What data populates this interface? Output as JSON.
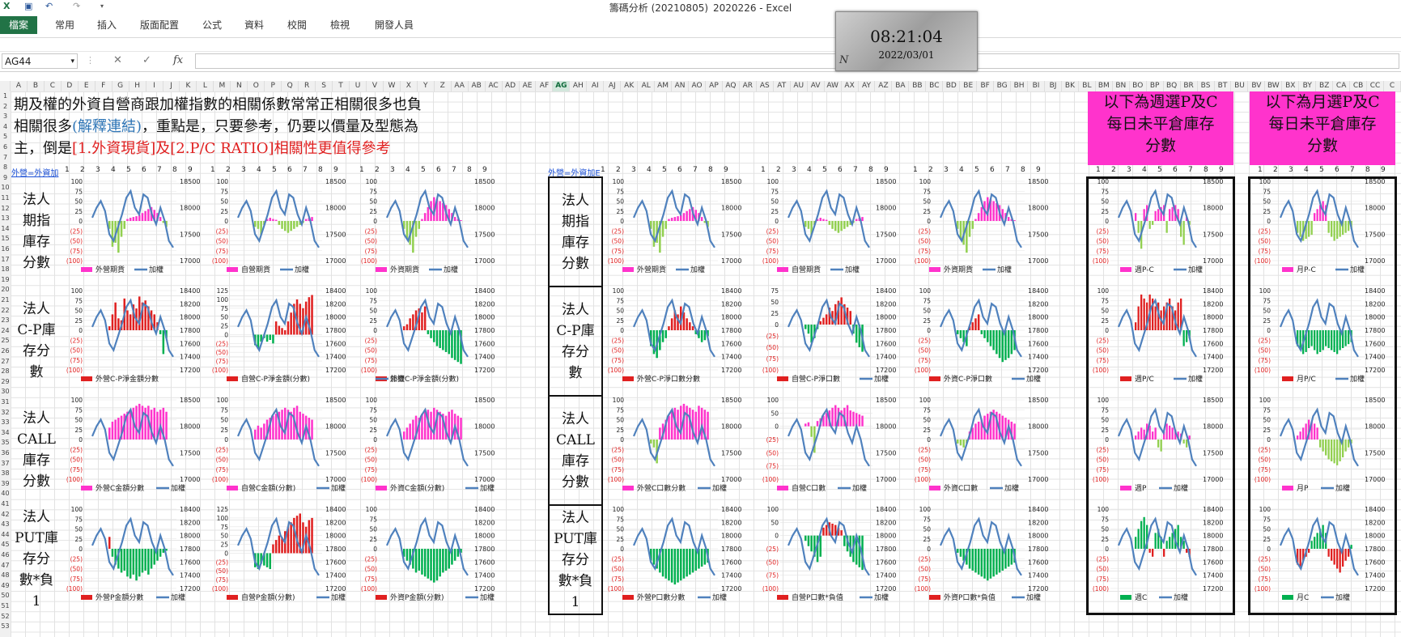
{
  "window": {
    "title": "籌碼分析 (20210805)_2020226 - Excel",
    "qa_icons": [
      "excel-icon",
      "save-icon",
      "undo-icon",
      "redo-icon",
      "customize-icon"
    ]
  },
  "ribbon": {
    "file": "檔案",
    "tabs": [
      "常用",
      "插入",
      "版面配置",
      "公式",
      "資料",
      "校閱",
      "檢視",
      "開發人員"
    ]
  },
  "clock": {
    "time": "08:21:04",
    "date": "2022/03/01",
    "mark": "N"
  },
  "formula_bar": {
    "name_box": "AG44",
    "cancel": "✕",
    "enter": "✓",
    "fx": "fx",
    "formula": ""
  },
  "columns": [
    "A",
    "B",
    "C",
    "D",
    "E",
    "F",
    "G",
    "H",
    "I",
    "J",
    "K",
    "L",
    "M",
    "N",
    "O",
    "P",
    "Q",
    "R",
    "S",
    "T",
    "U",
    "V",
    "W",
    "X",
    "Y",
    "Z",
    "AA",
    "AB",
    "AC",
    "AD",
    "AE",
    "AF",
    "AG",
    "AH",
    "AI",
    "AJ",
    "AK",
    "AL",
    "AM",
    "AN",
    "AO",
    "AP",
    "AQ",
    "AR",
    "AS",
    "AT",
    "AU",
    "AV",
    "AW",
    "AX",
    "AY",
    "AZ",
    "BA",
    "BB",
    "BC",
    "BD",
    "BE",
    "BF",
    "BG",
    "BH",
    "BI",
    "BJ",
    "BK",
    "BL",
    "BM",
    "BN",
    "BO",
    "BP",
    "BQ",
    "BR",
    "BS",
    "BT",
    "BU",
    "BV",
    "BW",
    "BX",
    "BY",
    "BZ",
    "CA",
    "CB",
    "CC",
    "C"
  ],
  "selected_column": "AG",
  "number_row": [
    "1",
    "2",
    "3",
    "4",
    "5",
    "6",
    "7",
    "8",
    "9"
  ],
  "note": {
    "line1": "期及權的外資自營商跟加權指數的相關係數常常正相關很多也負",
    "line2a": "相關很多",
    "line2b": "(解釋連結)",
    "line2c": "，重點是，只要參考，仍要以價量及型態為",
    "line3a": "主，倒是",
    "line3b": "[1.外資現貨]及[2.P/C RATIO]",
    "line3c": "相關性更值得參考"
  },
  "links": {
    "a": "外營=外資加",
    "b": "外營=外資加E"
  },
  "pink_boxes": [
    {
      "line1": "以下為週選P及C",
      "line2": "每日未平倉庫存",
      "line3": "分數"
    },
    {
      "line1": "以下為月選P及C",
      "line2": "每日未平倉庫存",
      "line3": "分數"
    }
  ],
  "row_labels": [
    [
      "法人",
      "期指",
      "庫存",
      "分數"
    ],
    [
      "法人",
      "C-P庫",
      "存分",
      "數"
    ],
    [
      "法人",
      "CALL",
      "庫存",
      "分數"
    ],
    [
      "法人",
      "PUT庫",
      "存分",
      "數*負",
      "1"
    ]
  ],
  "left_axis_sets": {
    "a": [
      "100",
      "75",
      "50",
      "25",
      "0",
      "(25)",
      "(50)",
      "(75)",
      "(100)"
    ],
    "b": [
      "125",
      "100",
      "75",
      "50",
      "25",
      "0",
      "(25)",
      "(50)",
      "(75)",
      "(100)"
    ],
    "c": [
      "100",
      "50",
      "0",
      "(25)",
      "(50)",
      "(75)",
      "(100)"
    ],
    "d": [
      "75",
      "50",
      "25",
      "0",
      "(25)",
      "(50)",
      "(75)",
      "(100)"
    ]
  },
  "right_axis_sets": {
    "r1": [
      "18500",
      "18000",
      "17500",
      "17000"
    ],
    "r2": [
      "18400",
      "18200",
      "18000",
      "17800",
      "17600",
      "17400",
      "17200"
    ]
  },
  "colors": {
    "pink": "#ff33cc",
    "green": "#92d050",
    "red": "#e02020",
    "dkgreen": "#00b050",
    "blue": "#4f81bd"
  },
  "charts": [
    {
      "legend": [
        "外營期貨",
        "加權"
      ],
      "pos": "#ff33cc",
      "neg": "#92d050",
      "line": "#4f81bd",
      "laxis": "a",
      "raxis": "r1",
      "values": [
        -20,
        -65,
        -55,
        -80,
        -40,
        -20,
        5,
        8,
        10,
        12,
        15,
        20,
        25,
        30,
        35,
        28,
        20,
        10,
        -5,
        -15
      ]
    },
    {
      "legend": [
        "自營期貨",
        "加權"
      ],
      "pos": "#ff33cc",
      "neg": "#92d050",
      "line": "#4f81bd",
      "laxis": "a",
      "raxis": "r1",
      "values": [
        -15,
        -20,
        -35,
        -10,
        5,
        8,
        5,
        3,
        -10,
        -20,
        -25,
        -30,
        -25,
        -20,
        -15,
        -10,
        -5,
        5,
        8,
        10
      ]
    },
    {
      "legend": [
        "外資期貨",
        "加權"
      ],
      "pos": "#ff33cc",
      "neg": "#92d050",
      "line": "#4f81bd",
      "laxis": "a",
      "raxis": "r1",
      "values": [
        -20,
        -45,
        -60,
        -80,
        -40,
        -20,
        5,
        20,
        35,
        50,
        60,
        55,
        50,
        45,
        40,
        30,
        20,
        10,
        5,
        2
      ]
    },
    {
      "legend": [
        "外營C-P淨金額分數"
      ],
      "pos": "#e02020",
      "neg": "#00b050",
      "line": "#4f81bd",
      "laxis": "a",
      "raxis": "r2",
      "values": [
        10,
        40,
        70,
        30,
        25,
        80,
        50,
        40,
        65,
        55,
        85,
        70,
        75,
        60,
        50,
        40,
        20,
        -10,
        -60,
        -20
      ]
    },
    {
      "legend": [
        "自營C-P淨金額(分數)"
      ],
      "pos": "#e02020",
      "neg": "#00b050",
      "line": "#4f81bd",
      "laxis": "b",
      "raxis": "r2",
      "values": [
        -30,
        -40,
        -20,
        -10,
        -20,
        -15,
        -25,
        30,
        20,
        15,
        10,
        30,
        50,
        70,
        80,
        70,
        60,
        75,
        85,
        90
      ]
    },
    {
      "legend": [
        "外資C-P淨金額(分數)",
        "加權"
      ],
      "pos": "#e02020",
      "neg": "#00b050",
      "line": "#4f81bd",
      "laxis": "a",
      "raxis": "r2",
      "values": [
        10,
        15,
        30,
        40,
        50,
        55,
        45,
        60,
        -10,
        -20,
        -30,
        -40,
        -45,
        -50,
        -55,
        -60,
        -70,
        -75,
        -80,
        -85
      ]
    },
    {
      "legend": [
        "外營C金額分數",
        "加權"
      ],
      "pos": "#ff33cc",
      "neg": "#92d050",
      "line": "#4f81bd",
      "laxis": "a",
      "raxis": "r1",
      "values": [
        30,
        45,
        50,
        55,
        60,
        65,
        70,
        75,
        80,
        85,
        90,
        85,
        80,
        85,
        75,
        80,
        70,
        75,
        80,
        70
      ]
    },
    {
      "legend": [
        "自營C金額(分數)",
        "加權"
      ],
      "pos": "#ff33cc",
      "neg": "#92d050",
      "line": "#4f81bd",
      "laxis": "a",
      "raxis": "r1",
      "values": [
        25,
        35,
        30,
        40,
        50,
        55,
        60,
        65,
        70,
        75,
        80,
        75,
        70,
        80,
        85,
        70,
        65,
        60,
        55,
        50
      ]
    },
    {
      "legend": [
        "外資C金額(分數)",
        "加權"
      ],
      "pos": "#ff33cc",
      "neg": "#92d050",
      "line": "#4f81bd",
      "laxis": "a",
      "raxis": "r1",
      "values": [
        20,
        30,
        40,
        50,
        60,
        55,
        65,
        70,
        75,
        70,
        80,
        75,
        70,
        65,
        60,
        70,
        75,
        65,
        60,
        55
      ]
    },
    {
      "legend": [
        "外營P金額分數",
        "加權"
      ],
      "pos": "#e02020",
      "neg": "#00b050",
      "line": "#4f81bd",
      "laxis": "a",
      "raxis": "r2",
      "values": [
        30,
        -20,
        -40,
        -50,
        -60,
        -55,
        -70,
        -75,
        -65,
        -80,
        -70,
        -60,
        -55,
        -65,
        -50,
        -40,
        -30,
        -20,
        -10,
        -5
      ]
    },
    {
      "legend": [
        "自營P金額(分數)",
        "加權"
      ],
      "pos": "#e02020",
      "neg": "#00b050",
      "line": "#4f81bd",
      "laxis": "b",
      "raxis": "r2",
      "values": [
        -40,
        -45,
        -30,
        -35,
        -40,
        -45,
        20,
        30,
        40,
        35,
        50,
        60,
        70,
        80,
        85,
        90,
        70,
        60,
        75,
        80
      ]
    },
    {
      "legend": [
        "外資P金額(分數)",
        "加權"
      ],
      "pos": "#e02020",
      "neg": "#00b050",
      "line": "#4f81bd",
      "laxis": "a",
      "raxis": "r2",
      "values": [
        -20,
        -30,
        -40,
        -50,
        -60,
        -55,
        -65,
        -70,
        -75,
        -80,
        -85,
        -80,
        -70,
        -60,
        -55,
        -50,
        -40,
        -30,
        -20,
        -10
      ]
    },
    {
      "legend": [
        "外營期貨",
        "加權"
      ],
      "pos": "#ff33cc",
      "neg": "#92d050",
      "line": "#4f81bd",
      "laxis": "a",
      "raxis": "r1",
      "values": [
        -20,
        -65,
        -55,
        -80,
        -40,
        -20,
        5,
        8,
        10,
        12,
        15,
        20,
        25,
        30,
        35,
        28,
        20,
        10,
        -5,
        -15
      ]
    },
    {
      "legend": [
        "自營期貨",
        "加權"
      ],
      "pos": "#ff33cc",
      "neg": "#92d050",
      "line": "#4f81bd",
      "laxis": "a",
      "raxis": "r1",
      "values": [
        -15,
        -20,
        -35,
        -10,
        5,
        8,
        5,
        3,
        -10,
        -20,
        -25,
        -30,
        -25,
        -20,
        -15,
        -10,
        -5,
        5,
        8,
        10
      ]
    },
    {
      "legend": [
        "外資期貨",
        "加權"
      ],
      "pos": "#ff33cc",
      "neg": "#92d050",
      "line": "#4f81bd",
      "laxis": "a",
      "raxis": "r1",
      "values": [
        -20,
        -45,
        -60,
        -80,
        -40,
        -20,
        5,
        20,
        35,
        50,
        60,
        55,
        50,
        45,
        40,
        30,
        20,
        10,
        5,
        2
      ]
    },
    {
      "legend": [
        "外營C-P淨口數分數"
      ],
      "pos": "#e02020",
      "neg": "#00b050",
      "line": "#4f81bd",
      "laxis": "a",
      "raxis": "r2",
      "values": [
        -40,
        -60,
        -70,
        -50,
        -30,
        -20,
        10,
        30,
        50,
        40,
        60,
        45,
        30,
        20,
        10,
        -10,
        -20,
        -30,
        -25,
        -15
      ]
    },
    {
      "legend": [
        "自營C-P淨口數",
        "加權"
      ],
      "pos": "#e02020",
      "neg": "#00b050",
      "line": "#4f81bd",
      "laxis": "d",
      "raxis": "r2",
      "values": [
        -10,
        -20,
        -40,
        -30,
        -10,
        10,
        20,
        30,
        50,
        40,
        60,
        70,
        80,
        60,
        50,
        40,
        -20,
        -40,
        -50,
        -60
      ]
    },
    {
      "legend": [
        "外資C-P淨口數",
        "加權"
      ],
      "pos": "#e02020",
      "neg": "#00b050",
      "line": "#4f81bd",
      "laxis": "a",
      "raxis": "r2",
      "values": [
        -10,
        -20,
        -30,
        -40,
        10,
        20,
        30,
        40,
        -10,
        -20,
        -30,
        -40,
        -50,
        -60,
        -70,
        -80,
        -75,
        -70,
        -60,
        -50
      ]
    },
    {
      "legend": [
        "外營C口數分數",
        "加權"
      ],
      "pos": "#ff33cc",
      "neg": "#92d050",
      "line": "#4f81bd",
      "laxis": "a",
      "raxis": "r1",
      "values": [
        -10,
        -20,
        -60,
        30,
        40,
        50,
        60,
        70,
        80,
        75,
        85,
        90,
        85,
        80,
        75,
        70,
        85,
        80,
        75,
        70
      ]
    },
    {
      "legend": [
        "自營C口數",
        "加權"
      ],
      "pos": "#ff33cc",
      "neg": "#92d050",
      "line": "#4f81bd",
      "laxis": "c",
      "raxis": "r1",
      "values": [
        10,
        15,
        -20,
        -50,
        20,
        30,
        40,
        50,
        60,
        70,
        80,
        70,
        60,
        70,
        80,
        60,
        55,
        50,
        45,
        40
      ]
    },
    {
      "legend": [
        "外資C口數",
        "加權"
      ],
      "pos": "#ff33cc",
      "neg": "#92d050",
      "line": "#4f81bd",
      "laxis": "a",
      "raxis": "r1",
      "values": [
        -10,
        -15,
        -20,
        -10,
        20,
        30,
        40,
        45,
        50,
        60,
        65,
        70,
        75,
        70,
        65,
        60,
        55,
        50,
        45,
        40
      ]
    },
    {
      "legend": [
        "外營P口數分數",
        "加權"
      ],
      "pos": "#e02020",
      "neg": "#00b050",
      "line": "#4f81bd",
      "laxis": "a",
      "raxis": "r2",
      "values": [
        -30,
        -40,
        -50,
        -60,
        -70,
        -75,
        -80,
        -85,
        -90,
        -85,
        -80,
        -75,
        -70,
        -65,
        -60,
        -55,
        -50,
        -45,
        -40,
        -35
      ]
    },
    {
      "legend": [
        "自營P口數*負值",
        "加權"
      ],
      "pos": "#e02020",
      "neg": "#00b050",
      "line": "#4f81bd",
      "laxis": "c",
      "raxis": "r2",
      "values": [
        -10,
        -20,
        -30,
        -40,
        -50,
        -40,
        30,
        40,
        50,
        45,
        40,
        30,
        20,
        -20,
        -30,
        -40,
        -50,
        -55,
        -60,
        -65
      ]
    },
    {
      "legend": [
        "外資P口數*負值",
        "加權"
      ],
      "pos": "#e02020",
      "neg": "#00b050",
      "line": "#4f81bd",
      "laxis": "a",
      "raxis": "r2",
      "values": [
        -10,
        -20,
        -30,
        -40,
        -50,
        -55,
        -60,
        -65,
        -70,
        -75,
        -80,
        -75,
        -70,
        -65,
        -60,
        -55,
        -50,
        -45,
        -40,
        -35
      ]
    },
    {
      "legend": [
        "週P-C",
        "加權"
      ],
      "pos": "#ff33cc",
      "neg": "#92d050",
      "line": "#4f81bd",
      "laxis": "a",
      "raxis": "r1",
      "values": [
        20,
        -30,
        -70,
        30,
        40,
        -20,
        -10,
        25,
        30,
        35,
        40,
        -30,
        30,
        35,
        40,
        30,
        -40,
        -60,
        10,
        -10
      ]
    },
    {
      "legend": [
        "月P-C",
        "加權"
      ],
      "pos": "#ff33cc",
      "neg": "#92d050",
      "line": "#4f81bd",
      "laxis": "a",
      "raxis": "r1",
      "values": [
        -30,
        -40,
        -50,
        -45,
        -40,
        -35,
        20,
        30,
        40,
        50,
        40,
        -30,
        -40,
        -50,
        -45,
        -40,
        -35,
        -30,
        -25,
        -20
      ]
    },
    {
      "legend": [
        "週P/C",
        "加權"
      ],
      "pos": "#e02020",
      "neg": "#00b050",
      "line": "#4f81bd",
      "laxis": "a",
      "raxis": "r2",
      "values": [
        20,
        60,
        90,
        80,
        70,
        90,
        80,
        60,
        70,
        50,
        60,
        70,
        80,
        60,
        50,
        70,
        80,
        -40,
        -30,
        -20
      ]
    },
    {
      "legend": [
        "月P/C",
        "加權"
      ],
      "pos": "#e02020",
      "neg": "#00b050",
      "line": "#4f81bd",
      "laxis": "a",
      "raxis": "r2",
      "values": [
        -40,
        -50,
        -60,
        -55,
        -45,
        -40,
        -50,
        -60,
        -55,
        -50,
        -40,
        -45,
        -50,
        -55,
        -60,
        -50,
        -45,
        -40,
        -35,
        -30
      ]
    },
    {
      "legend": [
        "週P",
        "加權"
      ],
      "pos": "#ff33cc",
      "neg": "#92d050",
      "line": "#4f81bd",
      "laxis": "a",
      "raxis": "r1",
      "values": [
        10,
        20,
        30,
        25,
        40,
        35,
        20,
        30,
        -20,
        -30,
        20,
        40,
        35,
        30,
        25,
        20,
        15,
        -10,
        -20,
        10
      ]
    },
    {
      "legend": [
        "月P",
        "加權"
      ],
      "pos": "#ff33cc",
      "neg": "#92d050",
      "line": "#4f81bd",
      "laxis": "a",
      "raxis": "r1",
      "values": [
        10,
        20,
        30,
        40,
        50,
        45,
        40,
        30,
        -20,
        -30,
        -40,
        -50,
        -55,
        -60,
        -65,
        -55,
        -45,
        -30,
        -20,
        -10
      ]
    },
    {
      "legend": [
        "週C",
        "加權"
      ],
      "pos": "#00b050",
      "neg": "#e02020",
      "line": "#4f81bd",
      "laxis": "a",
      "raxis": "r2",
      "values": [
        30,
        50,
        70,
        80,
        60,
        -10,
        -20,
        40,
        50,
        30,
        -20,
        20,
        30,
        40,
        50,
        60,
        30,
        20,
        -10,
        -20
      ]
    },
    {
      "legend": [
        "月C",
        "加權"
      ],
      "pos": "#00b050",
      "neg": "#e02020",
      "line": "#4f81bd",
      "laxis": "a",
      "raxis": "r2",
      "values": [
        -40,
        -50,
        -30,
        -20,
        -10,
        20,
        30,
        40,
        50,
        60,
        40,
        -20,
        -30,
        -40,
        -50,
        -60,
        -45,
        -30,
        -20,
        10
      ]
    }
  ],
  "index_line": [
    0.55,
    0.7,
    0.8,
    0.65,
    0.3,
    0.2,
    0.4,
    0.6,
    0.85,
    0.95,
    0.7,
    0.6,
    0.9,
    0.85,
    0.6,
    0.45,
    0.7,
    0.5,
    0.2,
    0.1
  ]
}
